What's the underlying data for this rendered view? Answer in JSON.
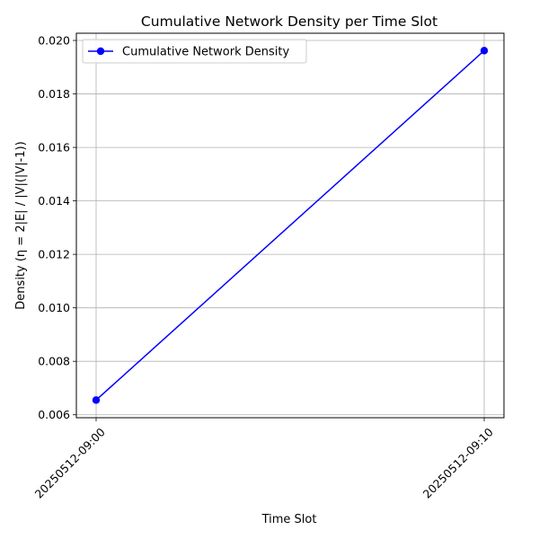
{
  "chart_data": {
    "type": "line",
    "title": "Cumulative Network Density per Time Slot",
    "xlabel": "Time Slot",
    "ylabel": "Density (η = 2|E| / |V|(|V|-1))",
    "categories": [
      "20250512-09:00",
      "20250512-09:10"
    ],
    "series": [
      {
        "name": "Cumulative Network Density",
        "values": [
          0.00655,
          0.01962
        ],
        "color": "#0000ff",
        "marker": "circle"
      }
    ],
    "ylim": [
      0.00589,
      0.02027
    ],
    "yticks": [
      0.006,
      0.008,
      0.01,
      0.012,
      0.014,
      0.016,
      0.018,
      0.02
    ],
    "ytick_labels": [
      "0.006",
      "0.008",
      "0.010",
      "0.012",
      "0.014",
      "0.016",
      "0.018",
      "0.020"
    ],
    "grid": true,
    "legend": "upper-left"
  }
}
